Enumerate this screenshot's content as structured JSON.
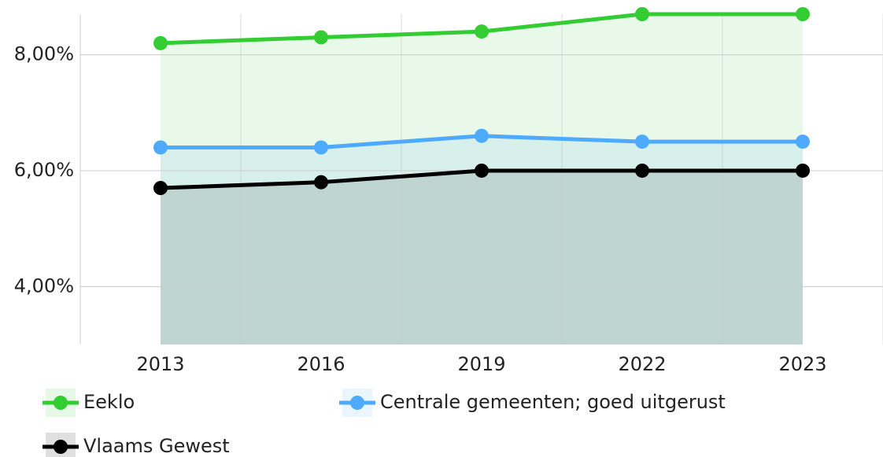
{
  "chart_data": {
    "type": "line",
    "categories": [
      "2013",
      "2016",
      "2019",
      "2022",
      "2023"
    ],
    "series": [
      {
        "name": "Eeklo",
        "color": "#33cc33",
        "values": [
          8.2,
          8.3,
          8.4,
          8.7,
          8.7
        ]
      },
      {
        "name": "Centrale gemeenten; goed uitgerust",
        "color": "#4daaff",
        "values": [
          6.4,
          6.4,
          6.6,
          6.5,
          6.5
        ]
      },
      {
        "name": "Vlaams Gewest",
        "color": "#000000",
        "values": [
          5.7,
          5.8,
          6.0,
          6.0,
          6.0
        ]
      }
    ],
    "ylim": [
      3,
      8.7
    ],
    "yticks": [
      {
        "value": 4,
        "label": "4,00%"
      },
      {
        "value": 6,
        "label": "6,00%"
      },
      {
        "value": 8,
        "label": "8,00%"
      }
    ],
    "grid": true,
    "area": true,
    "legend": "bottom"
  }
}
